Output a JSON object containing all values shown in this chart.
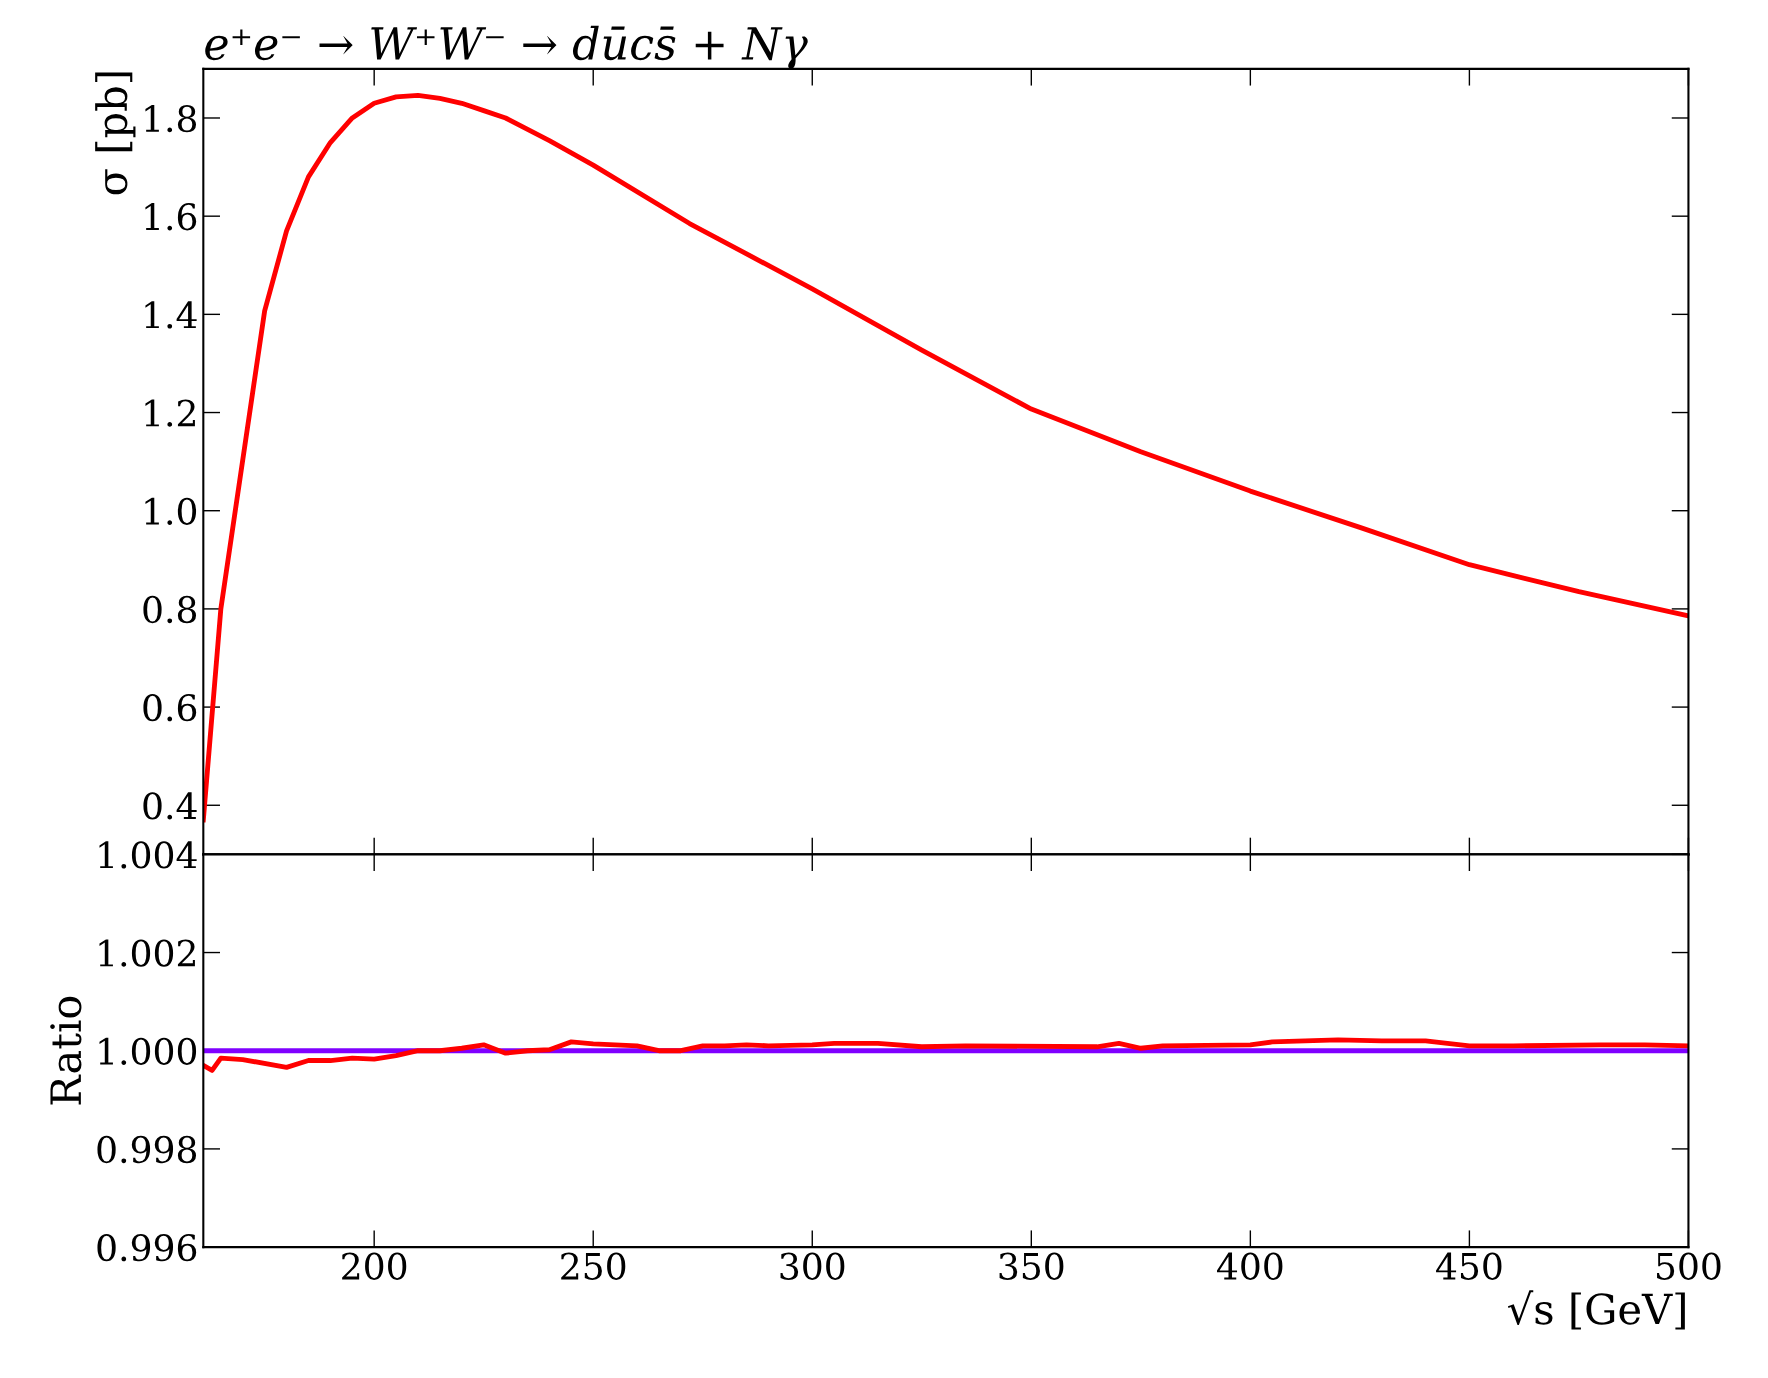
{
  "chart_data": [
    {
      "type": "line",
      "title": "e⁺e⁻ → W⁺W⁻ → dūcs̄ + Nγ",
      "ylabel": "σ [pb]",
      "tick_labels": "y",
      "legend": false,
      "xlim": [
        161,
        500
      ],
      "xticks": [
        200,
        250,
        300,
        350,
        400,
        450,
        500
      ],
      "ylim": [
        0.3,
        1.9
      ],
      "yticks": [
        {
          "value": 0.4,
          "label": "0.4"
        },
        {
          "value": 0.6,
          "label": "0.6"
        },
        {
          "value": 0.8,
          "label": "0.8"
        },
        {
          "value": 1.0,
          "label": "1.0"
        },
        {
          "value": 1.2,
          "label": "1.2"
        },
        {
          "value": 1.4,
          "label": "1.4"
        },
        {
          "value": 1.6,
          "label": "1.6"
        },
        {
          "value": 1.8,
          "label": "1.8"
        }
      ],
      "series": [
        {
          "color": "#ff0000",
          "x": [
            161,
            165,
            175,
            180,
            185,
            190,
            195,
            200,
            205,
            210,
            215,
            220,
            225,
            230,
            240,
            250,
            272,
            300,
            325,
            350,
            375,
            400,
            425,
            450,
            475,
            500
          ],
          "values": [
            0.37,
            0.8,
            1.407,
            1.57,
            1.68,
            1.75,
            1.8,
            1.83,
            1.843,
            1.846,
            1.84,
            1.83,
            1.815,
            1.8,
            1.754,
            1.704,
            1.585,
            1.452,
            1.327,
            1.207,
            1.12,
            1.04,
            0.966,
            0.89,
            0.835,
            0.786
          ]
        }
      ]
    },
    {
      "type": "line",
      "xlabel": "√s [GeV]",
      "ylabel": "Ratio",
      "legend": false,
      "xlim": [
        161,
        500
      ],
      "xticks": [
        200,
        250,
        300,
        350,
        400,
        450,
        500
      ],
      "ylim": [
        0.996,
        1.004
      ],
      "yticks": [
        {
          "value": 0.996,
          "label": "0.996"
        },
        {
          "value": 0.998,
          "label": "0.998"
        },
        {
          "value": 1.0,
          "label": "1.000"
        },
        {
          "value": 1.002,
          "label": "1.002"
        },
        {
          "value": 1.004,
          "label": "1.004"
        }
      ],
      "series": [
        {
          "color": "#7f00ff",
          "x": [
            161,
            500
          ],
          "values": [
            1.0,
            1.0
          ]
        },
        {
          "color": "#ff0000",
          "x": [
            161,
            163,
            165,
            170,
            180,
            185,
            190,
            195,
            200,
            205,
            210,
            215,
            220,
            225,
            230,
            235,
            240,
            245,
            250,
            260,
            265,
            270,
            275,
            280,
            285,
            290,
            300,
            305,
            315,
            325,
            335,
            365,
            370,
            375,
            380,
            400,
            405,
            420,
            430,
            440,
            450,
            460,
            480,
            490,
            500
          ],
          "values": [
            0.9997,
            0.9996,
            0.99985,
            0.99982,
            0.99966,
            0.9998,
            0.9998,
            0.99985,
            0.99983,
            0.9999,
            1.0,
            1.0,
            1.00005,
            1.00012,
            0.99995,
            1.0,
            1.00002,
            1.00018,
            1.00014,
            1.0001,
            1.0,
            1.0,
            1.0001,
            1.0001,
            1.00012,
            1.0001,
            1.00012,
            1.00015,
            1.00015,
            1.00008,
            1.0001,
            1.00008,
            1.00015,
            1.00005,
            1.0001,
            1.00012,
            1.00018,
            1.00022,
            1.0002,
            1.0002,
            1.0001,
            1.0001,
            1.00012,
            1.00012,
            1.0001
          ]
        }
      ]
    }
  ]
}
